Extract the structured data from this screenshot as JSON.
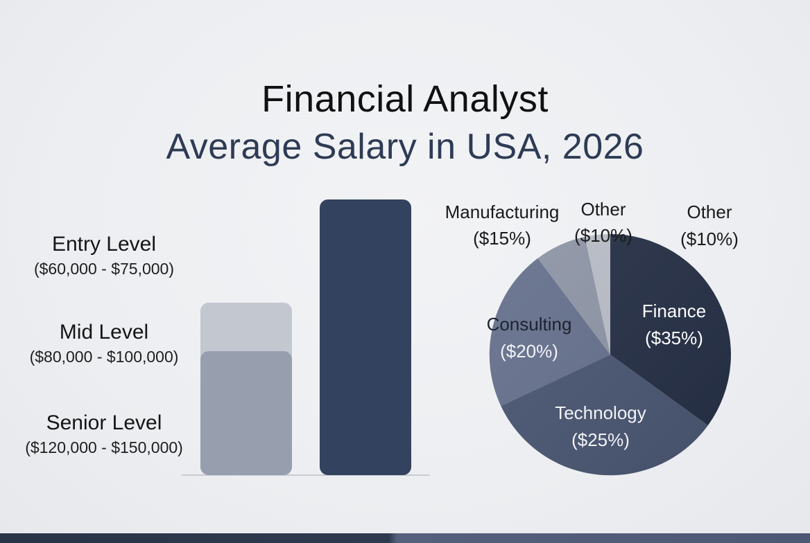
{
  "header": {
    "title": "Financial Analyst",
    "subtitle": "Average Salary in USA, 2026"
  },
  "levels": [
    {
      "name": "Entry Level",
      "range": "($60,000 - $75,000)"
    },
    {
      "name": "Mid Level",
      "range": "($80,000 - $100,000)"
    },
    {
      "name": "Senior Level",
      "range": "($120,000 - $150,000)"
    }
  ],
  "colors": {
    "title": "#111111",
    "subtitle": "#2e3b55",
    "bar_light": "#c3c7d0",
    "bar_mid": "#979eae",
    "bar_dark": "#33425e",
    "finance": "#252f45",
    "technology": "#4a5672",
    "consulting": "#66718d",
    "manufacturing": "#8e95a6",
    "other": "#b9bdc7"
  },
  "chart_data": [
    {
      "type": "bar",
      "categories": [
        "Entry Level",
        "Mid Level",
        "Senior Level"
      ],
      "values": [
        67500,
        90000,
        135000
      ],
      "ranges": [
        [
          60000,
          75000
        ],
        [
          80000,
          100000
        ],
        [
          120000,
          150000
        ]
      ],
      "xlabel": "",
      "ylabel": "",
      "grid": false
    },
    {
      "type": "pie",
      "slices": [
        {
          "label": "Finance",
          "value_label": "($35%)",
          "value": 35,
          "color": "#252f45"
        },
        {
          "label": "Technology",
          "value_label": "($25%)",
          "value": 25,
          "color": "#4a5672"
        },
        {
          "label": "Consulting",
          "value_label": "($20%)",
          "value": 20,
          "color": "#66718d"
        },
        {
          "label": "Manufacturing",
          "value_label": "($15%)",
          "value": 15,
          "color": "#8e95a6"
        },
        {
          "label": "Other",
          "value_label": "($10%)",
          "value": 10,
          "color": "#b9bdc7"
        }
      ],
      "extra_label": {
        "label": "Other",
        "value_label": "($10%)"
      }
    }
  ]
}
